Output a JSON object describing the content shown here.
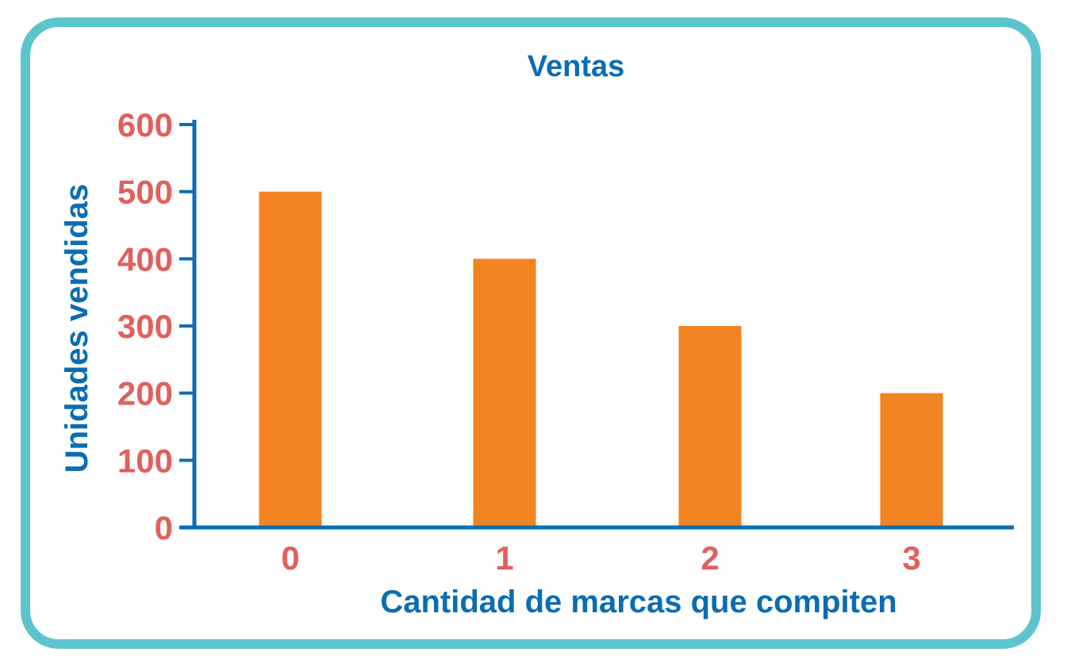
{
  "chart_data": {
    "type": "bar",
    "title": "Ventas",
    "xlabel": "Cantidad de marcas que compiten",
    "ylabel": "Unidades vendidas",
    "categories": [
      "0",
      "1",
      "2",
      "3"
    ],
    "values": [
      500,
      400,
      300,
      200
    ],
    "ylim": [
      0,
      600
    ],
    "yticks": [
      0,
      100,
      200,
      300,
      400,
      500,
      600
    ],
    "grid": false,
    "legend": "none"
  },
  "colors": {
    "frame": "#5bc4cf",
    "bar": "#f28423",
    "axis": "#0a6db3",
    "title": "#0a6db3",
    "tick_labels": "#e0605d"
  }
}
